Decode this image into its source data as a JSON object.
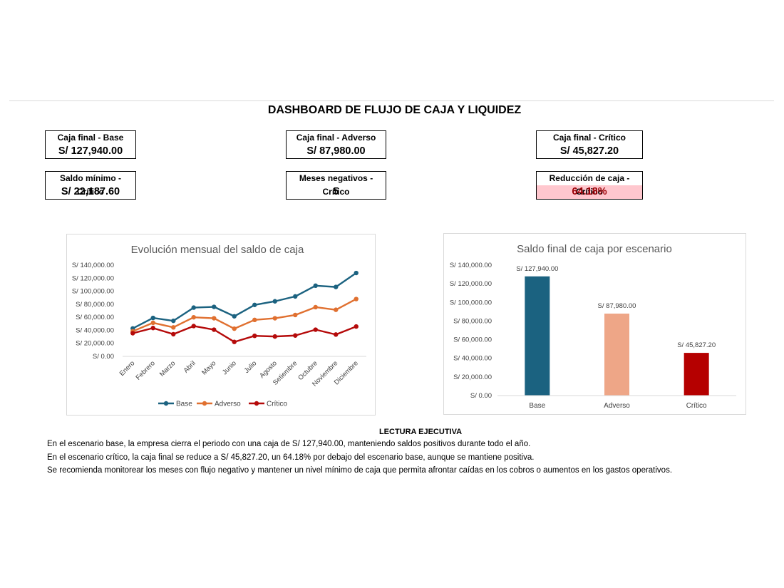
{
  "dashboard": {
    "title": "DASHBOARD DE FLUJO DE CAJA Y LIQUIDEZ"
  },
  "kpis": [
    {
      "label": "Caja final - Base",
      "value": "S/ 127,940.00"
    },
    {
      "label": "Caja final - Adverso",
      "value": "S/ 87,980.00"
    },
    {
      "label": "Caja final - Crítico",
      "value": "S/ 45,827.20"
    },
    {
      "label": "Saldo mínimo - Crítico",
      "value": "S/ 22,187.60"
    },
    {
      "label": "Meses negativos - Crítico",
      "value": "5"
    },
    {
      "label": "Reducción de caja - Crítico",
      "value": "64.18%"
    }
  ],
  "colors": {
    "base": "#1b6280",
    "adverso": "#e07030",
    "critico": "#b50a0a",
    "bar_adverso": "#eea687",
    "bar_critico": "#b50000",
    "alert_fill": "#ffc7ce",
    "alert_text": "#9c0006"
  },
  "chart_data": [
    {
      "type": "line",
      "title": "Evolución mensual del saldo de caja",
      "categories": [
        "Enero",
        "Febrero",
        "Marzo",
        "Abril",
        "Mayo",
        "Junio",
        "Julio",
        "Agosto",
        "Setiembre",
        "Octubre",
        "Noviembre",
        "Diciembre"
      ],
      "series": [
        {
          "name": "Base",
          "values": [
            42800,
            59000,
            54500,
            74800,
            76000,
            61500,
            79000,
            84500,
            92000,
            108500,
            106500,
            127940
          ]
        },
        {
          "name": "Adverso",
          "values": [
            38500,
            51500,
            44500,
            60000,
            58500,
            42500,
            56000,
            58500,
            63500,
            75500,
            71500,
            87980
          ]
        },
        {
          "name": "Crítico",
          "values": [
            35500,
            43500,
            34000,
            46500,
            41000,
            22187.6,
            31500,
            30500,
            32000,
            41000,
            33500,
            45827.2
          ]
        }
      ],
      "yticks": [
        "S/ 0.00",
        "S/ 20,000.00",
        "S/ 40,000.00",
        "S/ 60,000.00",
        "S/ 80,000.00",
        "S/ 100,000.00",
        "S/ 120,000.00",
        "S/ 140,000.00"
      ],
      "ylim": [
        0,
        140000
      ],
      "legend": "bottom"
    },
    {
      "type": "bar",
      "title": "Saldo final de caja por escenario",
      "categories": [
        "Base",
        "Adverso",
        "Crítico"
      ],
      "values": [
        127940,
        87980,
        45827.2
      ],
      "data_labels": [
        "S/ 127,940.00",
        "S/ 87,980.00",
        "S/ 45,827.20"
      ],
      "yticks": [
        "S/ 0.00",
        "S/ 20,000.00",
        "S/ 40,000.00",
        "S/ 60,000.00",
        "S/ 80,000.00",
        "S/ 100,000.00",
        "S/ 120,000.00",
        "S/ 140,000.00"
      ],
      "ylim": [
        0,
        140000
      ]
    }
  ],
  "executive": {
    "title": "LECTURA EJECUTIVA",
    "lines": [
      "En el escenario base, la empresa cierra el periodo con una caja de S/ 127,940.00, manteniendo saldos positivos durante todo el año.",
      "En el escenario crítico, la caja final se reduce a S/ 45,827.20, un 64.18% por debajo del escenario base, aunque se mantiene positiva.",
      "Se recomienda monitorear los meses con flujo negativo y mantener un nivel mínimo de caja que permita afrontar caídas en los cobros o aumentos en los gastos operativos."
    ]
  }
}
